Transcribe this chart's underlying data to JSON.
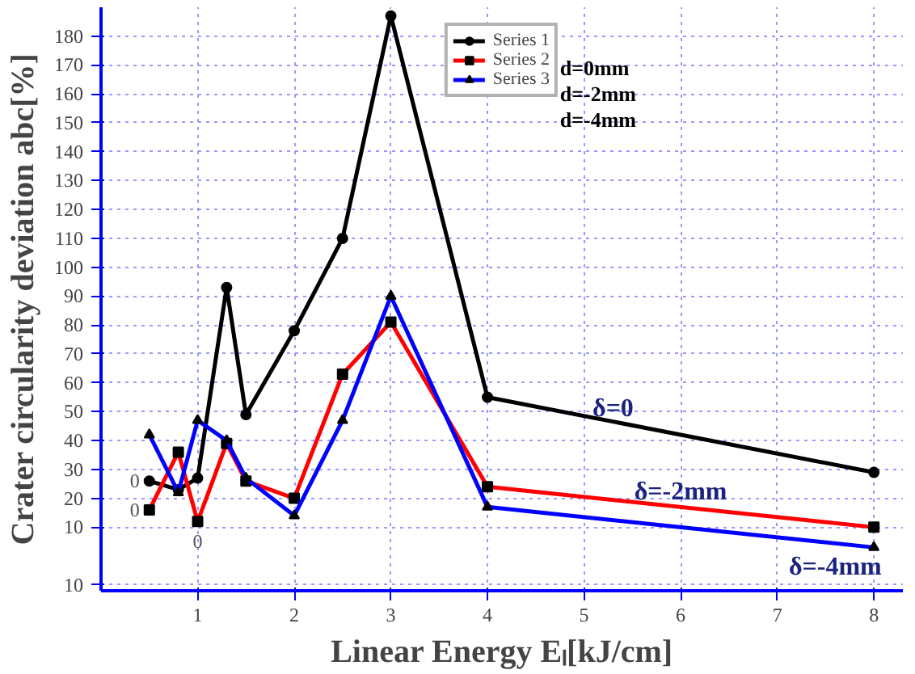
{
  "chart_data": {
    "type": "line",
    "xlabel": "Linear Energy Eₗ[kJ/cm]",
    "ylabel": "Crater circularity deviation abc[%]",
    "x": [
      0.5,
      0.8,
      1.0,
      1.3,
      1.5,
      2.0,
      2.5,
      3.0,
      4.0,
      8.0
    ],
    "series": [
      {
        "name": "Series 1",
        "color": "#000000",
        "marker": "circle",
        "values": [
          26,
          23,
          27,
          93,
          49,
          78,
          110,
          187,
          55,
          29
        ]
      },
      {
        "name": "Series 2",
        "color": "#ff0000",
        "marker": "square",
        "values": [
          16,
          36,
          12,
          39,
          26,
          20,
          63,
          81,
          24,
          10
        ]
      },
      {
        "name": "Series 3",
        "color": "#0000ff",
        "marker": "triangle",
        "values": [
          42,
          22,
          47,
          40,
          27,
          14,
          47,
          90,
          17,
          3
        ]
      }
    ],
    "xlim": [
      0,
      8.3
    ],
    "ylim": [
      -12,
      190
    ],
    "xticks": [
      1,
      2,
      3,
      4,
      5,
      6,
      7,
      8
    ],
    "yticks": [
      {
        "value": -10,
        "label": "10"
      },
      10,
      20,
      30,
      40,
      50,
      60,
      70,
      80,
      90,
      100,
      110,
      120,
      130,
      140,
      150,
      160,
      170,
      180
    ],
    "grid": true,
    "legend": "top",
    "annotations": [
      "d=0mm",
      "d=-2mm",
      "d=-4mm",
      "0",
      "0",
      "0",
      "δ=0",
      "δ=-2mm",
      "δ=-4mm"
    ]
  }
}
